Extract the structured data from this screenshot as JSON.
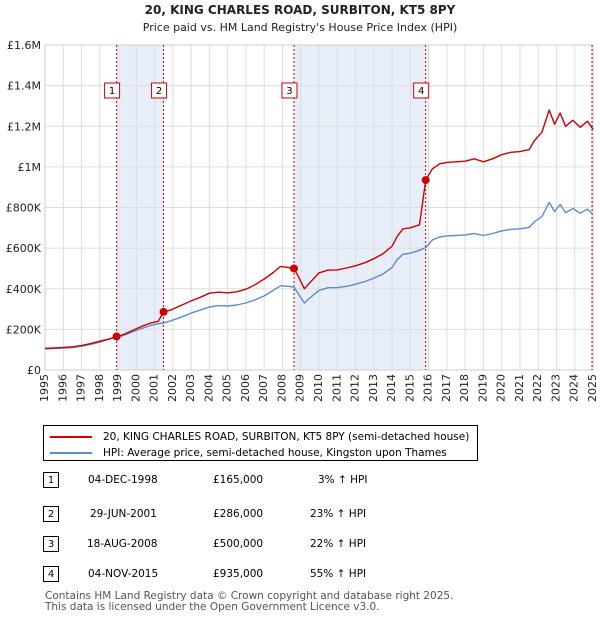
{
  "chart_data": {
    "type": "line",
    "title": "20, KING CHARLES ROAD, SURBITON, KT5 8PY",
    "subtitle": "Price paid vs. HM Land Registry's House Price Index (HPI)",
    "xlabel": "",
    "ylabel": "",
    "xlim": [
      1995,
      2025
    ],
    "ylim": [
      0,
      1600000
    ],
    "yticks": [
      0,
      200000,
      400000,
      600000,
      800000,
      1000000,
      1200000,
      1400000,
      1600000
    ],
    "ytick_labels": [
      "£0",
      "£200K",
      "£400K",
      "£600K",
      "£800K",
      "£1M",
      "£1.2M",
      "£1.4M",
      "£1.6M"
    ],
    "xticks": [
      1995,
      1996,
      1997,
      1998,
      1999,
      2000,
      2001,
      2002,
      2003,
      2004,
      2005,
      2006,
      2007,
      2008,
      2009,
      2010,
      2011,
      2012,
      2013,
      2014,
      2015,
      2016,
      2017,
      2018,
      2019,
      2020,
      2021,
      2022,
      2023,
      2024,
      2025
    ],
    "xtick_labels": [
      "1995",
      "1996",
      "1997",
      "1998",
      "1999",
      "2000",
      "2001",
      "2002",
      "2003",
      "2004",
      "2005",
      "2006",
      "2007",
      "2008",
      "2009",
      "2010",
      "2011",
      "2012",
      "2013",
      "2014",
      "2015",
      "2016",
      "2017",
      "2018",
      "2019",
      "2020",
      "2021",
      "2022",
      "2023",
      "2024",
      "2025"
    ],
    "grid": true,
    "legend_position": "below",
    "series": [
      {
        "name": "20, KING CHARLES ROAD, SURBITON, KT5 8PY (semi-detached house)",
        "color": "#cc0000",
        "points": [
          [
            1995.0,
            107000
          ],
          [
            1995.5,
            109000
          ],
          [
            1996.0,
            111000
          ],
          [
            1996.5,
            114000
          ],
          [
            1997.0,
            120000
          ],
          [
            1997.5,
            130000
          ],
          [
            1998.0,
            142000
          ],
          [
            1998.5,
            152000
          ],
          [
            1998.92,
            165000
          ],
          [
            1999.3,
            175000
          ],
          [
            1999.8,
            195000
          ],
          [
            2000.3,
            215000
          ],
          [
            2000.8,
            232000
          ],
          [
            2001.2,
            240000
          ],
          [
            2001.49,
            286000
          ],
          [
            2001.9,
            296000
          ],
          [
            2002.5,
            320000
          ],
          [
            2003.0,
            340000
          ],
          [
            2003.5,
            358000
          ],
          [
            2004.0,
            378000
          ],
          [
            2004.5,
            383000
          ],
          [
            2005.0,
            380000
          ],
          [
            2005.5,
            385000
          ],
          [
            2006.0,
            398000
          ],
          [
            2006.5,
            420000
          ],
          [
            2007.0,
            448000
          ],
          [
            2007.5,
            480000
          ],
          [
            2007.9,
            510000
          ],
          [
            2008.3,
            505000
          ],
          [
            2008.63,
            500000
          ],
          [
            2008.9,
            455000
          ],
          [
            2009.2,
            400000
          ],
          [
            2009.5,
            430000
          ],
          [
            2010.0,
            478000
          ],
          [
            2010.5,
            492000
          ],
          [
            2011.0,
            493000
          ],
          [
            2011.5,
            502000
          ],
          [
            2012.0,
            513000
          ],
          [
            2012.5,
            528000
          ],
          [
            2013.0,
            548000
          ],
          [
            2013.5,
            572000
          ],
          [
            2014.0,
            610000
          ],
          [
            2014.3,
            660000
          ],
          [
            2014.6,
            695000
          ],
          [
            2015.0,
            700000
          ],
          [
            2015.5,
            715000
          ],
          [
            2015.84,
            935000
          ],
          [
            2016.2,
            990000
          ],
          [
            2016.6,
            1015000
          ],
          [
            2017.0,
            1022000
          ],
          [
            2017.5,
            1025000
          ],
          [
            2018.0,
            1028000
          ],
          [
            2018.5,
            1040000
          ],
          [
            2019.0,
            1025000
          ],
          [
            2019.5,
            1040000
          ],
          [
            2020.0,
            1060000
          ],
          [
            2020.5,
            1072000
          ],
          [
            2021.0,
            1075000
          ],
          [
            2021.5,
            1085000
          ],
          [
            2021.8,
            1130000
          ],
          [
            2022.2,
            1170000
          ],
          [
            2022.6,
            1280000
          ],
          [
            2022.9,
            1210000
          ],
          [
            2023.2,
            1265000
          ],
          [
            2023.5,
            1200000
          ],
          [
            2023.9,
            1230000
          ],
          [
            2024.3,
            1195000
          ],
          [
            2024.7,
            1225000
          ],
          [
            2025.0,
            1185000
          ]
        ]
      },
      {
        "name": "HPI: Average price, semi-detached house, Kingston upon Thames",
        "color": "#5b8ccc",
        "points": [
          [
            1995.0,
            104000
          ],
          [
            1995.5,
            106000
          ],
          [
            1996.0,
            108000
          ],
          [
            1996.5,
            111000
          ],
          [
            1997.0,
            117000
          ],
          [
            1997.5,
            126000
          ],
          [
            1998.0,
            137000
          ],
          [
            1998.5,
            152000
          ],
          [
            1998.92,
            160000
          ],
          [
            1999.3,
            170000
          ],
          [
            1999.8,
            188000
          ],
          [
            2000.3,
            205000
          ],
          [
            2000.8,
            220000
          ],
          [
            2001.2,
            228000
          ],
          [
            2001.49,
            232000
          ],
          [
            2001.9,
            242000
          ],
          [
            2002.5,
            262000
          ],
          [
            2003.0,
            280000
          ],
          [
            2003.5,
            295000
          ],
          [
            2004.0,
            310000
          ],
          [
            2004.5,
            317000
          ],
          [
            2005.0,
            315000
          ],
          [
            2005.5,
            320000
          ],
          [
            2006.0,
            330000
          ],
          [
            2006.5,
            345000
          ],
          [
            2007.0,
            365000
          ],
          [
            2007.5,
            392000
          ],
          [
            2007.9,
            415000
          ],
          [
            2008.3,
            412000
          ],
          [
            2008.63,
            409000
          ],
          [
            2008.9,
            370000
          ],
          [
            2009.2,
            330000
          ],
          [
            2009.5,
            355000
          ],
          [
            2010.0,
            392000
          ],
          [
            2010.5,
            405000
          ],
          [
            2011.0,
            405000
          ],
          [
            2011.5,
            412000
          ],
          [
            2012.0,
            422000
          ],
          [
            2012.5,
            435000
          ],
          [
            2013.0,
            452000
          ],
          [
            2013.5,
            472000
          ],
          [
            2014.0,
            505000
          ],
          [
            2014.3,
            545000
          ],
          [
            2014.6,
            570000
          ],
          [
            2015.0,
            575000
          ],
          [
            2015.5,
            590000
          ],
          [
            2015.84,
            603000
          ],
          [
            2016.2,
            640000
          ],
          [
            2016.6,
            655000
          ],
          [
            2017.0,
            660000
          ],
          [
            2017.5,
            662000
          ],
          [
            2018.0,
            665000
          ],
          [
            2018.5,
            672000
          ],
          [
            2019.0,
            662000
          ],
          [
            2019.5,
            672000
          ],
          [
            2020.0,
            685000
          ],
          [
            2020.5,
            692000
          ],
          [
            2021.0,
            695000
          ],
          [
            2021.5,
            702000
          ],
          [
            2021.8,
            730000
          ],
          [
            2022.2,
            755000
          ],
          [
            2022.6,
            825000
          ],
          [
            2022.9,
            780000
          ],
          [
            2023.2,
            815000
          ],
          [
            2023.5,
            775000
          ],
          [
            2023.9,
            795000
          ],
          [
            2024.3,
            772000
          ],
          [
            2024.7,
            792000
          ],
          [
            2025.0,
            765000
          ]
        ]
      }
    ],
    "sales": [
      {
        "id": "1",
        "x": 1998.92,
        "y": 165000
      },
      {
        "id": "2",
        "x": 2001.49,
        "y": 286000
      },
      {
        "id": "3",
        "x": 2008.63,
        "y": 500000
      },
      {
        "id": "4",
        "x": 2015.84,
        "y": 935000
      }
    ],
    "shaded_periods": [
      [
        1998.92,
        2001.49
      ],
      [
        2008.63,
        2015.84
      ]
    ]
  },
  "legend": {
    "property_label": "20, KING CHARLES ROAD, SURBITON, KT5 8PY (semi-detached house)",
    "hpi_label": "HPI: Average price, semi-detached house, Kingston upon Thames",
    "property_color": "#cc0000",
    "hpi_color": "#5b8ccc"
  },
  "sales_table": [
    {
      "num": "1",
      "date": "04-DEC-1998",
      "price": "£165,000",
      "hpi": "3% ↑ HPI"
    },
    {
      "num": "2",
      "date": "29-JUN-2001",
      "price": "£286,000",
      "hpi": "23% ↑ HPI"
    },
    {
      "num": "3",
      "date": "18-AUG-2008",
      "price": "£500,000",
      "hpi": "22% ↑ HPI"
    },
    {
      "num": "4",
      "date": "04-NOV-2015",
      "price": "£935,000",
      "hpi": "55% ↑ HPI"
    }
  ],
  "footer": {
    "line1": "Contains HM Land Registry data © Crown copyright and database right 2025.",
    "line2": "This data is licensed under the Open Government Licence v3.0."
  }
}
